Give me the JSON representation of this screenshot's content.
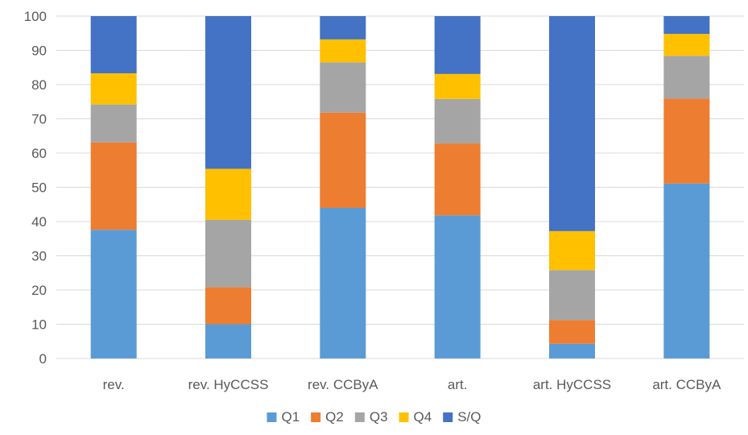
{
  "chart_data": {
    "type": "bar",
    "stacked": true,
    "title": "",
    "xlabel": "",
    "ylabel": "",
    "ylim": [
      0,
      100
    ],
    "yticks": [
      0,
      10,
      20,
      30,
      40,
      50,
      60,
      70,
      80,
      90,
      100
    ],
    "grid": true,
    "legend_position": "bottom",
    "categories": [
      "rev.",
      "rev. HyCCSS",
      "rev. CCByA",
      "art.",
      "art. HyCCSS",
      "art. CCByA"
    ],
    "series": [
      {
        "name": "Q1",
        "color": "#5B9BD5",
        "values": [
          37.6,
          10.0,
          44.0,
          41.8,
          4.3,
          51.1
        ]
      },
      {
        "name": "Q2",
        "color": "#ED7D31",
        "values": [
          25.5,
          10.8,
          27.8,
          21.0,
          6.9,
          24.8
        ]
      },
      {
        "name": "Q3",
        "color": "#A5A5A5",
        "values": [
          11.1,
          19.7,
          14.7,
          13.0,
          14.6,
          12.5
        ]
      },
      {
        "name": "Q4",
        "color": "#FFC000",
        "values": [
          9.1,
          14.9,
          6.7,
          7.3,
          11.4,
          6.4
        ]
      },
      {
        "name": "S/Q",
        "color": "#4472C4",
        "values": [
          16.7,
          44.6,
          6.8,
          16.9,
          62.8,
          5.2
        ]
      }
    ]
  }
}
